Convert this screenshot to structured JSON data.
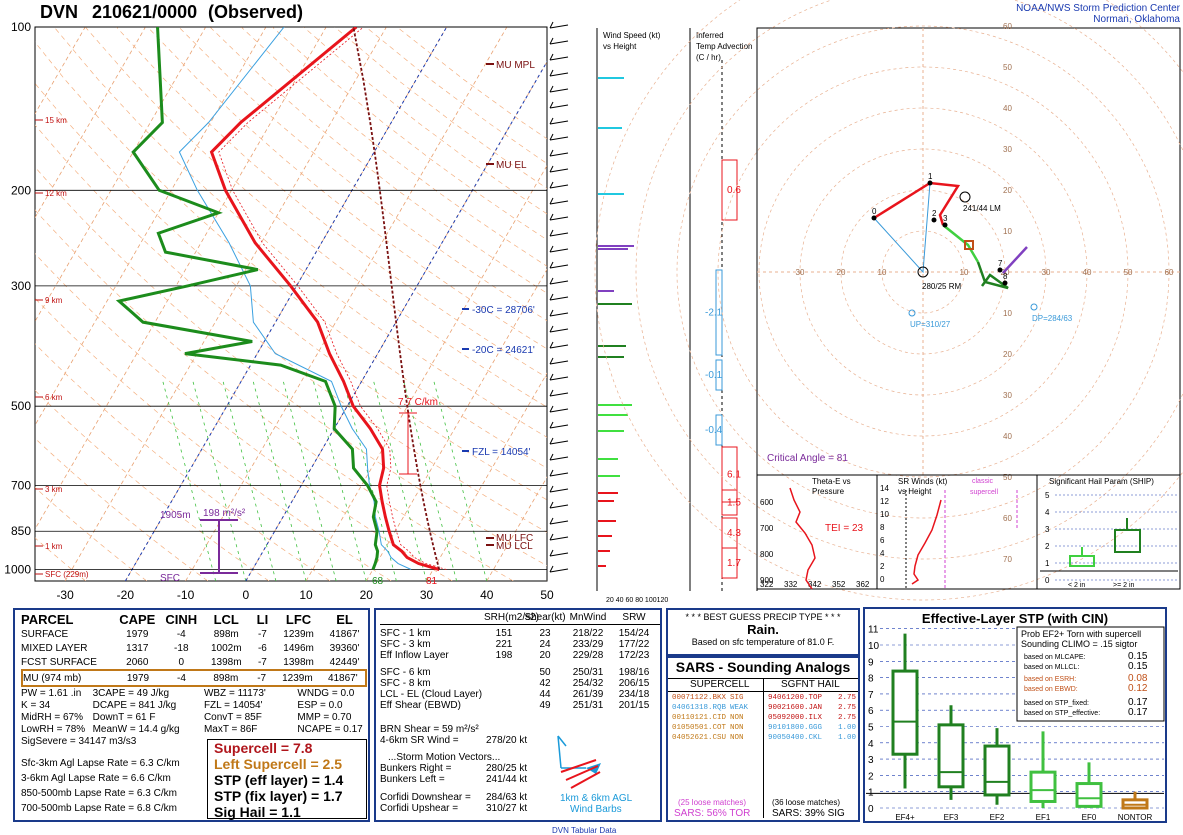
{
  "header": {
    "station": "DVN",
    "time": "210621/0000",
    "kind": "(Observed)",
    "org1": "NOAA/NWS Storm Prediction Center",
    "org2": "Norman, Oklahoma"
  },
  "colors": {
    "temp": "#e8141c",
    "dew": "#1c8c1c",
    "border": "#1a3a8a",
    "parcel": "#7a1010"
  },
  "chart_data": [
    {
      "type": "line",
      "title": "DVN 210621/0000 (Observed)",
      "y_pressure_ticks": [
        "100",
        "200",
        "300",
        "500",
        "700",
        "850",
        "1000"
      ],
      "x_temp_ticks": [
        "-30",
        "-20",
        "-10",
        "0",
        "10",
        "20",
        "30",
        "40",
        "50"
      ],
      "height_labels": [
        "15 km",
        "12 km",
        "9 km",
        "6 km",
        "3 km",
        "1 km",
        "SFC (229m)"
      ],
      "ylim_hpa": [
        1000,
        100
      ],
      "xlim_c": [
        -35,
        50
      ],
      "series": [
        {
          "name": "temperature",
          "points": [
            [
              1000,
              31
            ],
            [
              975,
              27
            ],
            [
              950,
              24.5
            ],
            [
              925,
              23
            ],
            [
              900,
              21
            ],
            [
              850,
              19
            ],
            [
              800,
              17
            ],
            [
              750,
              15
            ],
            [
              700,
              13
            ],
            [
              650,
              12
            ],
            [
              600,
              10
            ],
            [
              550,
              6
            ],
            [
              500,
              1
            ],
            [
              450,
              -3
            ],
            [
              400,
              -8
            ],
            [
              350,
              -13
            ],
            [
              300,
              -21
            ],
            [
              250,
              -31
            ],
            [
              200,
              -41
            ],
            [
              170,
              -47
            ],
            [
              150,
              -45
            ],
            [
              100,
              -35
            ]
          ]
        },
        {
          "name": "dewpoint",
          "points": [
            [
              1000,
              20
            ],
            [
              975,
              19.8
            ],
            [
              950,
              19.5
            ],
            [
              925,
              19
            ],
            [
              900,
              18
            ],
            [
              850,
              17
            ],
            [
              800,
              15
            ],
            [
              750,
              14
            ],
            [
              700,
              11
            ],
            [
              650,
              7
            ],
            [
              600,
              5
            ],
            [
              550,
              0
            ],
            [
              500,
              -2
            ],
            [
              450,
              -6
            ],
            [
              420,
              -15
            ],
            [
              400,
              -32
            ],
            [
              380,
              -22
            ],
            [
              350,
              -42
            ],
            [
              320,
              -48
            ],
            [
              300,
              -38
            ],
            [
              280,
              -28
            ],
            [
              260,
              -45
            ],
            [
              240,
              -48
            ],
            [
              220,
              -40
            ],
            [
              200,
              -52
            ],
            [
              170,
              -60
            ],
            [
              150,
              -58
            ],
            [
              100,
              -68
            ]
          ]
        }
      ],
      "annotations": [
        "MU MPL",
        "MU EL",
        "-30C = 28706'",
        "-20C = 24621'",
        "FZL = 14054'",
        "MU LCL",
        "MU LFC",
        "7.7 C/km",
        "1905m",
        "198 m²/s²",
        "SFC",
        "68",
        "81"
      ]
    },
    {
      "type": "hodograph",
      "labels": [
        "241/44 LM",
        "280/25 RM",
        "UP=310/27",
        "DP=284/63",
        "Critical Angle = 81"
      ],
      "axis_labels": [
        "30",
        "20",
        "10",
        "10",
        "20",
        "30",
        "40",
        "50",
        "60",
        "70",
        "80",
        "90",
        "100"
      ]
    }
  ],
  "wind_panel": {
    "title1": "Wind Speed (kt)",
    "title2": "vs Height",
    "ticks": "20 40 60 80 100120"
  },
  "tadv_panel": {
    "title1": "Inferred",
    "title2": "Temp Advection",
    "title3": "(C / hr)",
    "values": [
      "0.6",
      "-2.1",
      "-0.1",
      "-0.4",
      "6.1",
      "1.5",
      "4.3",
      "1.7"
    ]
  },
  "thetae": {
    "title1": "Theta-E vs",
    "title2": "Pressure",
    "tei": "TEI = 23",
    "ticks": [
      "322",
      "332",
      "342",
      "352",
      "362"
    ]
  },
  "srwinds": {
    "title1": "SR Winds (kt)",
    "title2": "vs Height",
    "class1": "classic",
    "class2": "supercell",
    "yticks": [
      "14",
      "12",
      "10",
      "8",
      "6",
      "4",
      "2",
      "0"
    ]
  },
  "ship": {
    "title": "Significant Hail Param (SHIP)",
    "lbl_lt": "< 2 in",
    "lbl_ge": ">= 2 in",
    "yticks": [
      "5",
      "4",
      "3",
      "2",
      "1",
      "0"
    ]
  },
  "parcel": {
    "headers": [
      "PARCEL",
      "CAPE",
      "CINH",
      "LCL",
      "LI",
      "LFC",
      "EL"
    ],
    "rows": [
      [
        "SURFACE",
        "1979",
        "-4",
        "898m",
        "-7",
        "1239m",
        "41867'"
      ],
      [
        "MIXED LAYER",
        "1317",
        "-18",
        "1002m",
        "-6",
        "1496m",
        "39360'"
      ],
      [
        "FCST SURFACE",
        "2060",
        "0",
        "1398m",
        "-7",
        "1398m",
        "42449'"
      ],
      [
        "MU   (974 mb)",
        "1979",
        "-4",
        "898m",
        "-7",
        "1239m",
        "41867'"
      ]
    ],
    "indices": [
      [
        "PW = 1.61 .in",
        "3CAPE = 49 J/kg",
        "WBZ = 11173'",
        "WNDG = 0.0"
      ],
      [
        "K = 34",
        "DCAPE = 841 J/kg",
        "FZL = 14054'",
        "ESP = 0.0"
      ],
      [
        "MidRH = 67%",
        "DownT = 61 F",
        "ConvT = 85F",
        "MMP = 0.70"
      ],
      [
        "LowRH = 78%",
        "MeanW = 14.4 g/kg",
        "MaxT = 86F",
        "NCAPE = 0.17"
      ]
    ],
    "sigsevere": "SigSevere = 34147 m3/s3",
    "lapse": [
      "Sfc-3km Agl Lapse Rate = 6.3 C/km",
      "3-6km Agl Lapse Rate = 6.6 C/km",
      "850-500mb Lapse Rate = 6.3 C/km",
      "700-500mb Lapse Rate = 6.8 C/km"
    ],
    "params": [
      "Supercell = 7.8",
      "Left Supercell = 2.5",
      "STP (eff layer) = 1.4",
      "STP (fix layer) = 1.7",
      "Sig Hail = 1.1"
    ]
  },
  "kinematic": {
    "headers": [
      "SRH(m2/s2)",
      "Shear(kt)",
      "MnWind",
      "SRW"
    ],
    "rows": [
      [
        "SFC - 1 km",
        "151",
        "23",
        "218/22",
        "154/24"
      ],
      [
        "SFC - 3 km",
        "221",
        "24",
        "233/29",
        "177/22"
      ],
      [
        "Eff Inflow Layer",
        "198",
        "20",
        "229/28",
        "172/23"
      ],
      [
        "SFC - 6 km",
        "",
        "50",
        "250/31",
        "198/16"
      ],
      [
        "SFC - 8 km",
        "",
        "42",
        "254/32",
        "206/15"
      ],
      [
        "LCL - EL (Cloud Layer)",
        "",
        "44",
        "261/39",
        "234/18"
      ],
      [
        "Eff Shear (EBWD)",
        "",
        "49",
        "251/31",
        "201/15"
      ]
    ],
    "brn": "BRN Shear =  59 m²/s²",
    "wind46": "4-6km SR Wind =",
    "wind46v": "278/20 kt",
    "smv": "...Storm Motion Vectors...",
    "motions": [
      [
        "Bunkers Right =",
        "280/25 kt"
      ],
      [
        "Bunkers Left =",
        "241/44 kt"
      ],
      [
        "Corfidi Downshear =",
        "284/63 kt"
      ],
      [
        "Corfidi Upshear =",
        "310/27 kt"
      ]
    ],
    "legend1": "1km & 6km AGL",
    "legend2": "Wind Barbs",
    "footer": "DVN Tabular Data"
  },
  "precip": {
    "title": "* * * BEST GUESS PRECIP TYPE * * *",
    "value": "Rain.",
    "note": "Based on sfc temperature of 81.0 F."
  },
  "sars": {
    "title": "SARS - Sounding Analogs",
    "col1": "SUPERCELL",
    "col2": "SGFNT HAIL",
    "supercell": [
      [
        "00071122.BKX",
        "SIG"
      ],
      [
        "04061318.RQB",
        "WEAK"
      ],
      [
        "00110121.CID",
        "NON"
      ],
      [
        "01050501.COT",
        "NON"
      ],
      [
        "04052621.CSU",
        "NON"
      ]
    ],
    "hail": [
      [
        "94061200.TOP",
        "2.75"
      ],
      [
        "90021600.JAN",
        "2.75"
      ],
      [
        "05092000.ILX",
        "2.75"
      ],
      [
        "90101800.GGG",
        "1.00"
      ],
      [
        "90050400.CKL",
        "1.00"
      ]
    ],
    "sc_matches": "(25 loose matches)",
    "sc_result": "SARS:  56% TOR",
    "hail_matches": "(36 loose matches)",
    "hail_result": "SARS:  39% SIG"
  },
  "stp": {
    "title": "Effective-Layer STP (with CIN)",
    "prob_title1": "Prob EF2+ Torn with supercell",
    "prob_title2": "Sounding CLIMO = .15 sigtor",
    "probs": [
      [
        "based on MLCAPE:",
        "0.15"
      ],
      [
        "based on MLLCL:",
        "0.15"
      ],
      [
        "based on ESRH:",
        "0.08"
      ],
      [
        "based on EBWD:",
        "0.12"
      ],
      [
        "based on STP_fixed:",
        "0.17"
      ],
      [
        "based on STP_effective:",
        "0.17"
      ]
    ],
    "yticks": [
      "11",
      "10",
      "9",
      "8",
      "7",
      "6",
      "5",
      "4",
      "3",
      "2",
      "1",
      "0"
    ],
    "categories": [
      "EF4+",
      "EF3",
      "EF2",
      "EF1",
      "EF0",
      "NONTOR"
    ],
    "boxes": [
      {
        "lo": 1.2,
        "q1": 3.3,
        "med": 5.3,
        "q3": 8.4,
        "hi": 10.7
      },
      {
        "lo": 0.5,
        "q1": 1.3,
        "med": 2.2,
        "q3": 5.1,
        "hi": 6.3
      },
      {
        "lo": 0.2,
        "q1": 0.8,
        "med": 1.6,
        "q3": 3.8,
        "hi": 4.9
      },
      {
        "lo": 0.0,
        "q1": 0.4,
        "med": 1.1,
        "q3": 2.2,
        "hi": 4.7
      },
      {
        "lo": 0.0,
        "q1": 0.1,
        "med": 0.6,
        "q3": 1.5,
        "hi": 2.8
      },
      {
        "lo": 0.0,
        "q1": 0.0,
        "med": 0.2,
        "q3": 0.5,
        "hi": 1.0
      }
    ]
  }
}
